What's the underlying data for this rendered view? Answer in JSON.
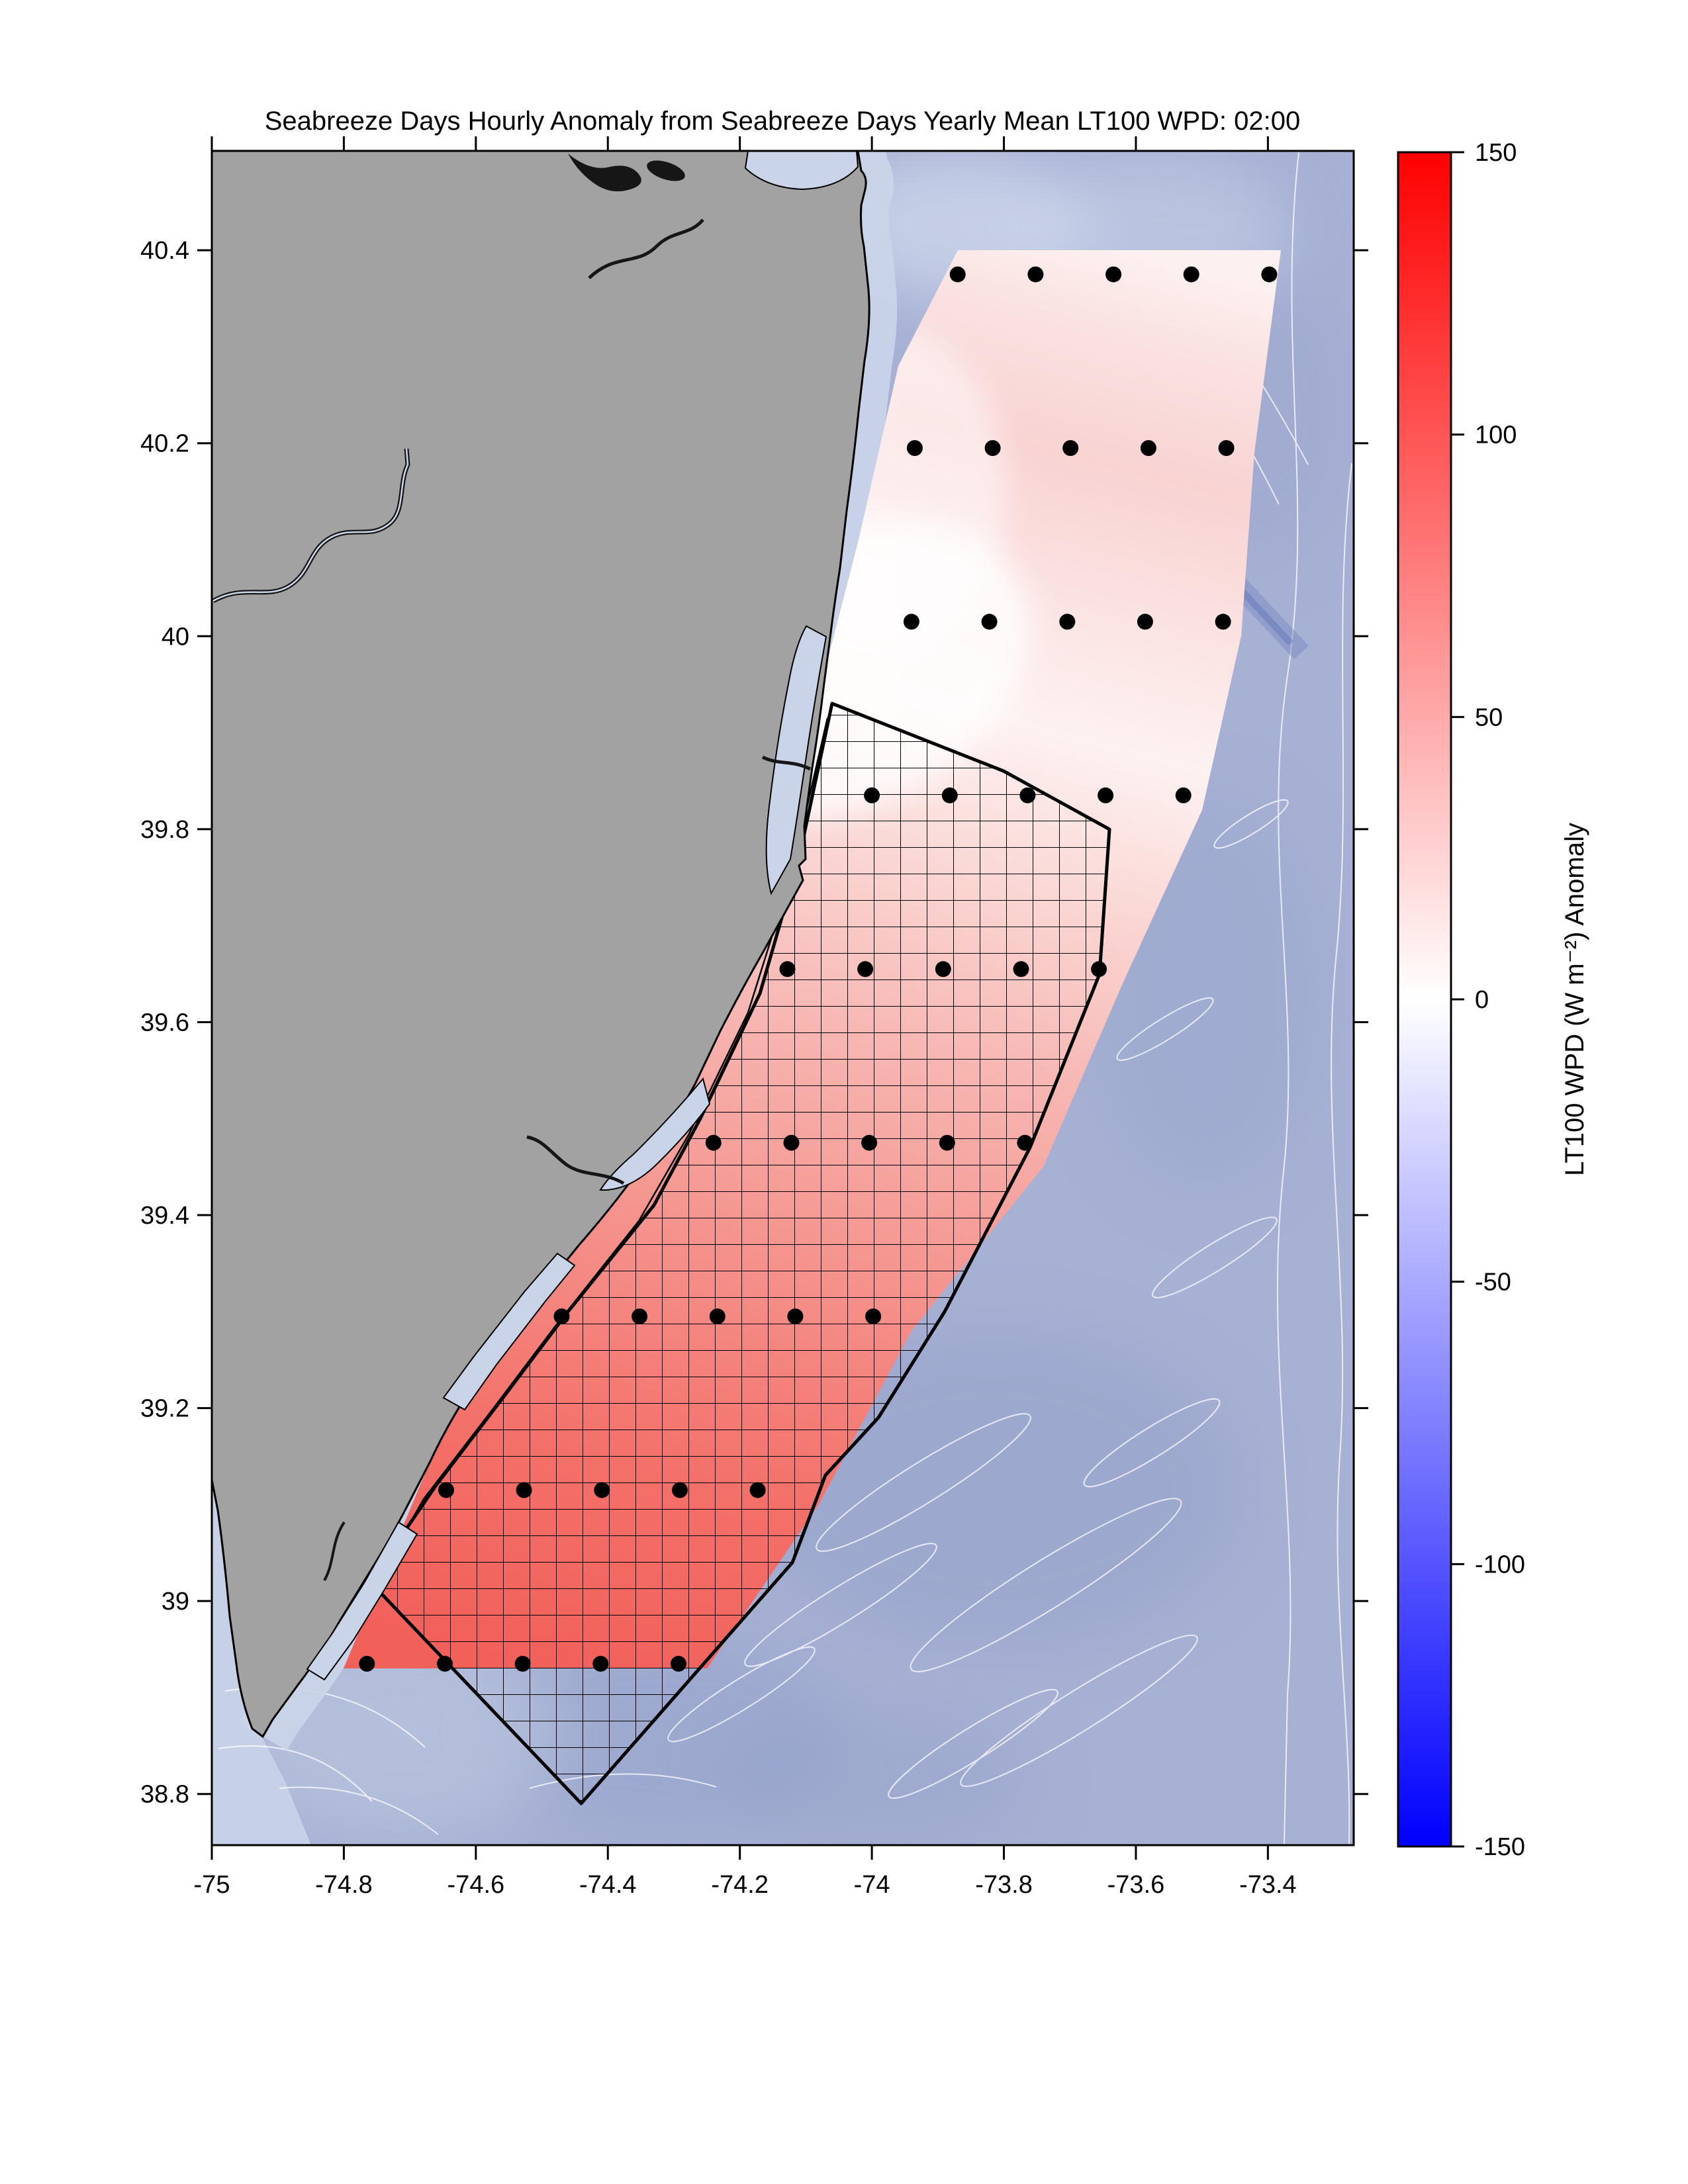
{
  "title": "Seabreeze Days Hourly Anomaly from Seabreeze Days Yearly Mean LT100 WPD: 02:00",
  "chart_data": {
    "type": "heatmap",
    "title": "Seabreeze Days Hourly Anomaly from Seabreeze Days Yearly Mean LT100 WPD: 02:00",
    "time_label": "02:00",
    "grid": false,
    "x_axis": {
      "label": "",
      "range": [
        -75,
        -73.27
      ],
      "ticks": [
        -75,
        -74.8,
        -74.6,
        -74.4,
        -74.2,
        -74,
        -73.8,
        -73.6,
        -73.4
      ],
      "tick_labels": [
        "-75",
        "-74.8",
        "-74.6",
        "-74.4",
        "-74.2",
        "-74",
        "-73.8",
        "-73.6",
        "-73.4"
      ]
    },
    "y_axis": {
      "label": "",
      "range": [
        38.747,
        40.503
      ],
      "ticks": [
        38.8,
        39,
        39.2,
        39.4,
        39.6,
        39.8,
        40,
        40.2,
        40.4
      ],
      "tick_labels": [
        "38.8",
        "39",
        "39.2",
        "39.4",
        "39.6",
        "39.8",
        "40",
        "40.2",
        "40.4"
      ]
    },
    "colorbar": {
      "label": "LT100 WPD (W m⁻²) Anomaly",
      "range": [
        -150,
        150
      ],
      "ticks": [
        150,
        100,
        50,
        0,
        -50,
        -100,
        -150
      ],
      "tick_labels": [
        "150",
        "100",
        "50",
        "0",
        "-50",
        "-100",
        "-150"
      ],
      "orientation": "vertical",
      "colors": {
        "max": "#ff0000",
        "mid": "#ffffff",
        "min": "#0000ff"
      }
    },
    "grid_points": [
      {
        "lat": 40.375,
        "lons": [
          -73.87,
          -73.752,
          -73.634,
          -73.516,
          -73.398
        ]
      },
      {
        "lat": 40.195,
        "lons": [
          -73.935,
          -73.817,
          -73.699,
          -73.581,
          -73.463
        ]
      },
      {
        "lat": 40.015,
        "lons": [
          -73.94,
          -73.822,
          -73.704,
          -73.586,
          -73.468
        ]
      },
      {
        "lat": 39.835,
        "lons": [
          -74.0,
          -73.882,
          -73.764,
          -73.646,
          -73.528
        ]
      },
      {
        "lat": 39.655,
        "lons": [
          -74.128,
          -74.01,
          -73.892,
          -73.774,
          -73.656
        ]
      },
      {
        "lat": 39.475,
        "lons": [
          -74.24,
          -74.122,
          -74.004,
          -73.886,
          -73.768
        ]
      },
      {
        "lat": 39.295,
        "lons": [
          -74.47,
          -74.352,
          -74.234,
          -74.116,
          -73.998
        ]
      },
      {
        "lat": 39.115,
        "lons": [
          -74.645,
          -74.527,
          -74.409,
          -74.291,
          -74.173
        ]
      },
      {
        "lat": 38.935,
        "lons": [
          -74.765,
          -74.647,
          -74.529,
          -74.411,
          -74.293
        ]
      }
    ],
    "estimated_anomaly_by_row_W_m2": [
      30,
      35,
      30,
      25,
      30,
      40,
      55,
      65,
      70
    ],
    "map": {
      "land_color": "#a2a2a2",
      "ocean_color": "#a7b1d4",
      "shallow_water_color": "#cbd5e9",
      "anomaly_peak_color": "#f2605a",
      "hatched_region": "black cross-hatched lease-area polygon offshore New Jersey",
      "contour_lines": "thin white bathymetry contours over ocean"
    }
  }
}
